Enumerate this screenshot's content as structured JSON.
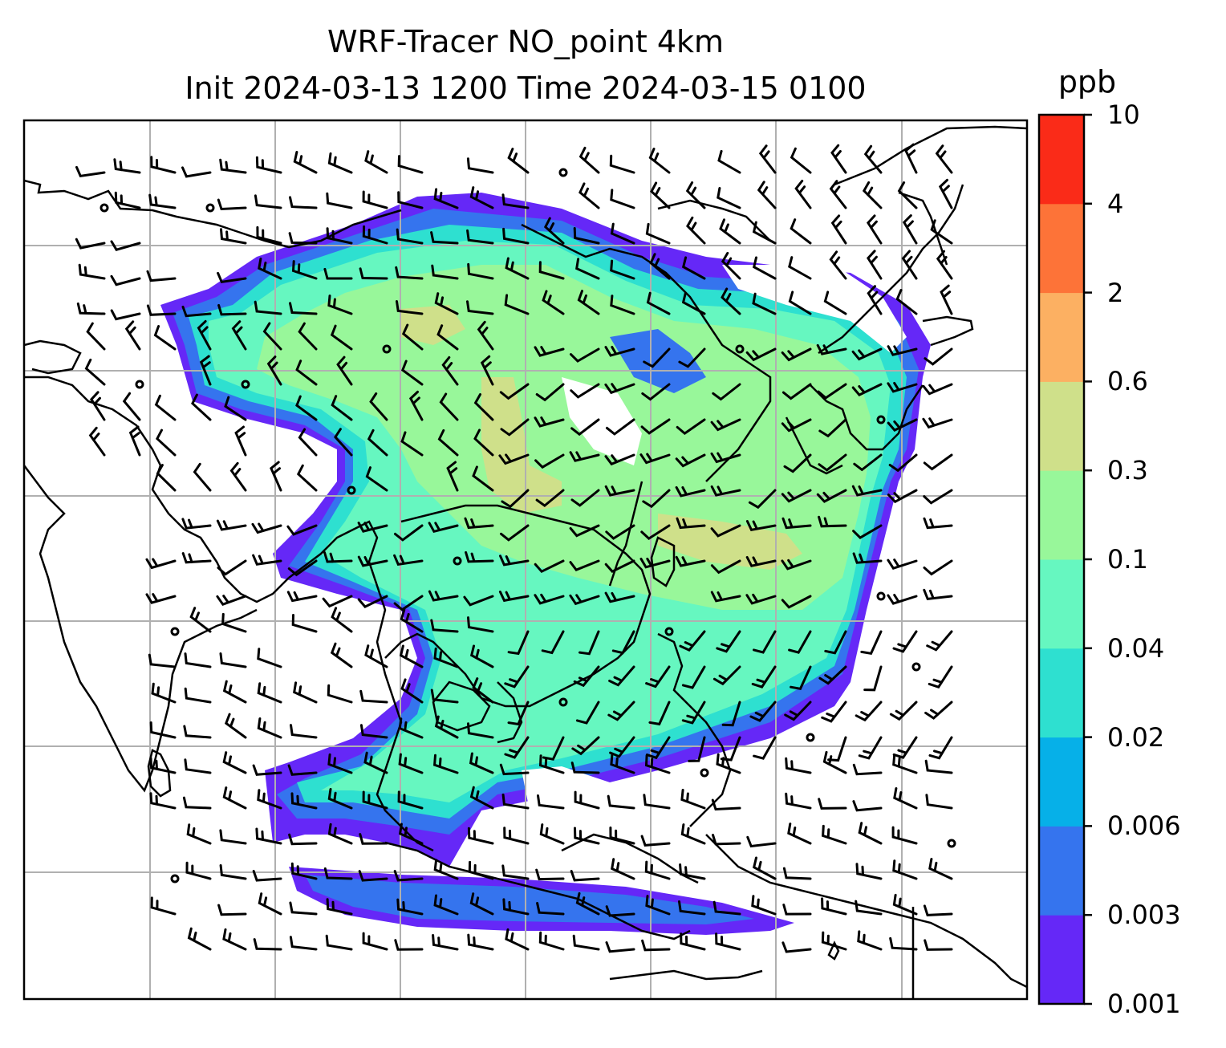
{
  "title_line1": "WRF-Tracer NO_point 4km",
  "title_line2": "Init 2024-03-13 1200 Time 2024-03-15 0100",
  "colorbar": {
    "unit": "ppb",
    "ticks": [
      "0.001",
      "0.003",
      "0.006",
      "0.02",
      "0.04",
      "0.1",
      "0.3",
      "0.6",
      "2",
      "4",
      "10"
    ],
    "colors": [
      "#6528f7",
      "#3574ee",
      "#06b0e8",
      "#2ee0d0",
      "#66f7c0",
      "#98f79a",
      "#cfe08a",
      "#fcb062",
      "#fd7338",
      "#fa2b18"
    ]
  },
  "map_colors": {
    "ocean_bg": "#ffffff",
    "grid": "#b0b0b0",
    "coast": "#000000"
  }
}
